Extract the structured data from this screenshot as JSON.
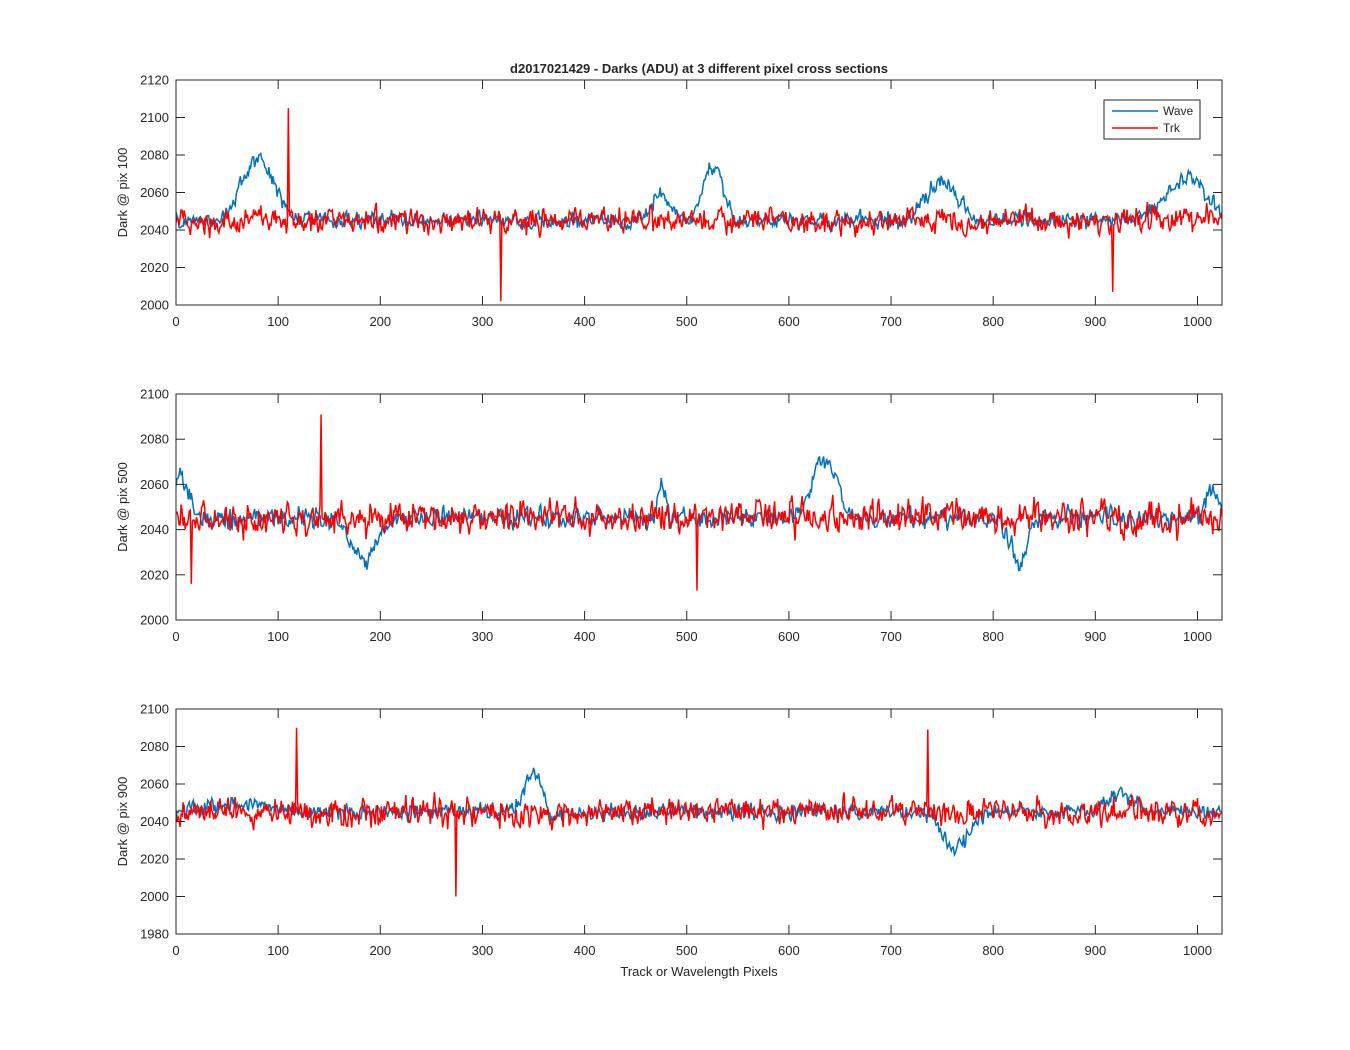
{
  "figure": {
    "title": "d2017021429 - Darks (ADU) at 3 different pixel cross sections",
    "xlabel": "Track or Wavelength Pixels"
  },
  "legend": {
    "entries": [
      "Wave",
      "Trk"
    ],
    "placement": "top-right"
  },
  "colors": {
    "wave": "#0072BD",
    "trk": "#FF0000",
    "axes": "#262626"
  },
  "chart_data": [
    {
      "type": "line",
      "ylabel": "Dark @ pix 100",
      "xlim": [
        0,
        1024
      ],
      "ylim": [
        2000,
        2120
      ],
      "xticks": [
        0,
        100,
        200,
        300,
        400,
        500,
        600,
        700,
        800,
        900,
        1000
      ],
      "yticks": [
        2000,
        2020,
        2040,
        2060,
        2080,
        2100,
        2120
      ],
      "series": [
        {
          "name": "Wave",
          "baseline": 2045,
          "noise_amplitude": 6,
          "x_range": [
            0,
            1024
          ],
          "features": [
            {
              "x": 80,
              "y": 2085,
              "width": 30
            },
            {
              "x": 475,
              "y": 2060,
              "width": 20
            },
            {
              "x": 525,
              "y": 2080,
              "width": 20
            },
            {
              "x": 750,
              "y": 2070,
              "width": 30
            },
            {
              "x": 990,
              "y": 2072,
              "width": 40
            }
          ]
        },
        {
          "name": "Trk",
          "baseline": 2045,
          "noise_amplitude": 9,
          "x_range": [
            0,
            1024
          ],
          "features": [
            {
              "x": 110,
              "y": 2105,
              "width": 2
            },
            {
              "x": 318,
              "y": 2002,
              "width": 1
            },
            {
              "x": 917,
              "y": 2007,
              "width": 1
            }
          ]
        }
      ]
    },
    {
      "type": "line",
      "ylabel": "Dark @ pix 500",
      "xlim": [
        0,
        1024
      ],
      "ylim": [
        2000,
        2100
      ],
      "xticks": [
        0,
        100,
        200,
        300,
        400,
        500,
        600,
        700,
        800,
        900,
        1000
      ],
      "yticks": [
        2000,
        2020,
        2040,
        2060,
        2080,
        2100
      ],
      "series": [
        {
          "name": "Wave",
          "baseline": 2045,
          "noise_amplitude": 6,
          "x_range": [
            0,
            1024
          ],
          "features": [
            {
              "x": 5,
              "y": 2068,
              "width": 15
            },
            {
              "x": 185,
              "y": 2024,
              "width": 25
            },
            {
              "x": 475,
              "y": 2065,
              "width": 8
            },
            {
              "x": 635,
              "y": 2075,
              "width": 25
            },
            {
              "x": 825,
              "y": 2022,
              "width": 15
            },
            {
              "x": 1015,
              "y": 2060,
              "width": 15
            }
          ]
        },
        {
          "name": "Trk",
          "baseline": 2045,
          "noise_amplitude": 10,
          "x_range": [
            0,
            1024
          ],
          "features": [
            {
              "x": 142,
              "y": 2091,
              "width": 1
            },
            {
              "x": 510,
              "y": 2013,
              "width": 1
            },
            {
              "x": 15,
              "y": 2016,
              "width": 1
            }
          ]
        }
      ]
    },
    {
      "type": "line",
      "ylabel": "Dark @ pix 900",
      "xlim": [
        0,
        1024
      ],
      "ylim": [
        1980,
        2100
      ],
      "xticks": [
        0,
        100,
        200,
        300,
        400,
        500,
        600,
        700,
        800,
        900,
        1000
      ],
      "yticks": [
        1980,
        2000,
        2020,
        2040,
        2060,
        2080,
        2100
      ],
      "series": [
        {
          "name": "Wave",
          "baseline": 2045,
          "noise_amplitude": 6,
          "x_range": [
            0,
            1024
          ],
          "features": [
            {
              "x": 60,
              "y": 2050,
              "width": 60
            },
            {
              "x": 350,
              "y": 2073,
              "width": 15
            },
            {
              "x": 765,
              "y": 2022,
              "width": 25
            },
            {
              "x": 925,
              "y": 2055,
              "width": 30
            }
          ]
        },
        {
          "name": "Trk",
          "baseline": 2045,
          "noise_amplitude": 10,
          "x_range": [
            0,
            1024
          ],
          "features": [
            {
              "x": 118,
              "y": 2090,
              "width": 1
            },
            {
              "x": 274,
              "y": 2000,
              "width": 1
            },
            {
              "x": 736,
              "y": 2089,
              "width": 1
            }
          ]
        }
      ]
    }
  ]
}
